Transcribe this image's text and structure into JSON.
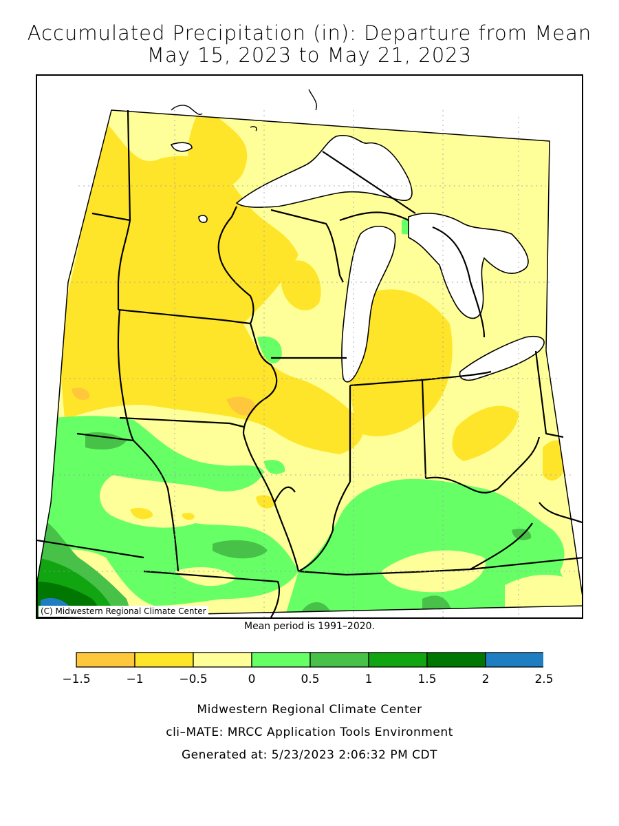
{
  "title": {
    "line1": "Accumulated Precipitation (in): Departure from Mean",
    "line2": "May 15, 2023 to May 21, 2023"
  },
  "map": {
    "copyright": "(C) Midwestern Regional Climate Center",
    "mean_period": "Mean period is 1991–2020."
  },
  "legend": {
    "categories": [
      {
        "range": [
          -1.5,
          -1.0
        ],
        "color": "#ffc83c"
      },
      {
        "range": [
          -1.0,
          -0.5
        ],
        "color": "#ffe529"
      },
      {
        "range": [
          -0.5,
          0.0
        ],
        "color": "#ffff9a"
      },
      {
        "range": [
          0.0,
          0.5
        ],
        "color": "#66ff66"
      },
      {
        "range": [
          0.5,
          1.0
        ],
        "color": "#47c147"
      },
      {
        "range": [
          1.0,
          1.5
        ],
        "color": "#11a511"
      },
      {
        "range": [
          1.5,
          2.0
        ],
        "color": "#007700"
      },
      {
        "range": [
          2.0,
          2.5
        ],
        "color": "#1f7ec1"
      }
    ],
    "ticks": [
      "−1.5",
      "−1",
      "−0.5",
      "0",
      "0.5",
      "1",
      "1.5",
      "2",
      "2.5"
    ]
  },
  "footer": {
    "line1": "Midwestern Regional Climate Center",
    "line2": "cli–MATE: MRCC Application Tools Environment",
    "line3": "Generated at: 5/23/2023 2:06:32 PM CDT"
  }
}
